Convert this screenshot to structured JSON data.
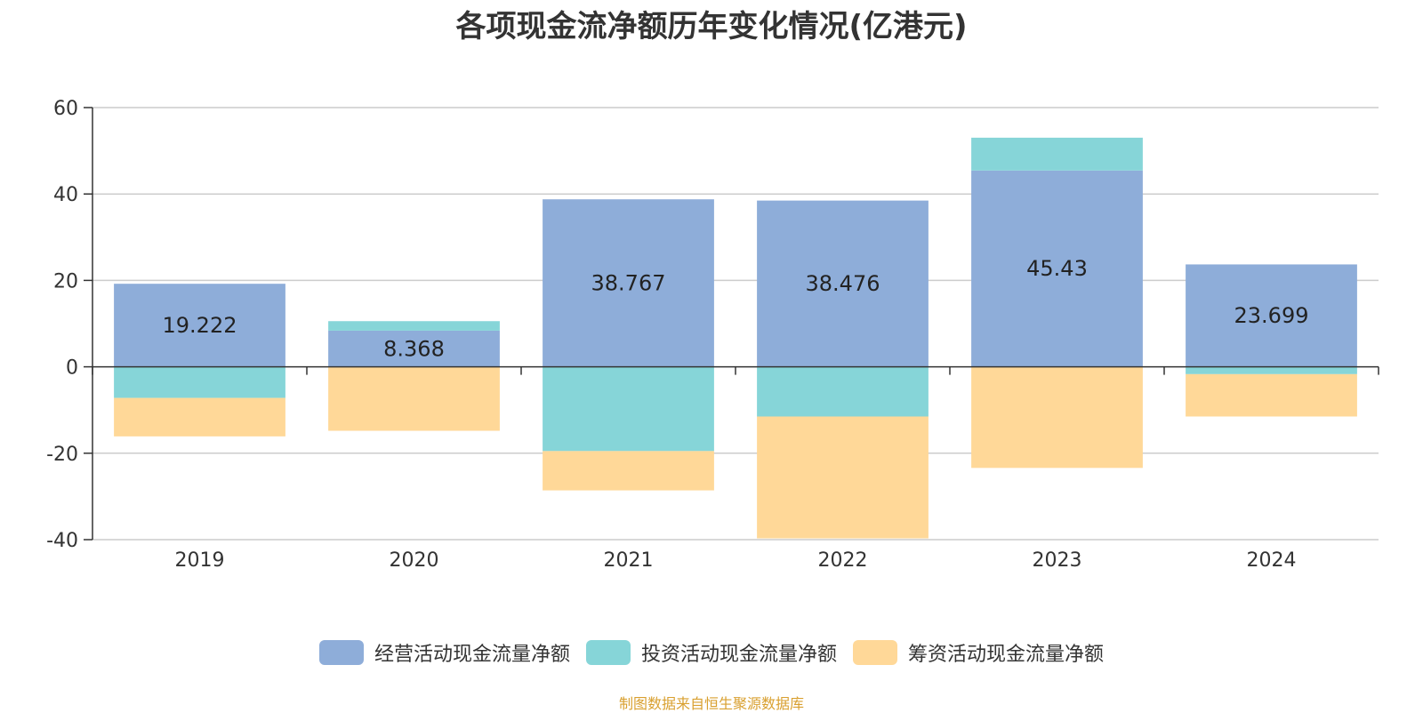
{
  "chart_data": {
    "type": "bar",
    "stacked": true,
    "title": "各项现金流净额历年变化情况(亿港元)",
    "categories": [
      "2019",
      "2020",
      "2021",
      "2022",
      "2023",
      "2024"
    ],
    "series": [
      {
        "name": "经营活动现金流量净额",
        "color": "#8eadd9",
        "values": [
          19.222,
          8.368,
          38.767,
          38.476,
          45.43,
          23.699
        ],
        "show_labels": true
      },
      {
        "name": "投资活动现金流量净额",
        "color": "#86d5d8",
        "values": [
          -7.2,
          2.2,
          -19.5,
          -11.5,
          7.6,
          -1.7
        ]
      },
      {
        "name": "筹资活动现金流量净额",
        "color": "#ffd898",
        "values": [
          -8.9,
          -14.8,
          -9.1,
          -28.2,
          -23.4,
          -9.8
        ]
      }
    ],
    "ylim": [
      -40,
      60
    ],
    "yticks": [
      60,
      40,
      20,
      0,
      -20,
      -40
    ],
    "grid": true,
    "legend_position": "bottom"
  },
  "source_note": "制图数据来自恒生聚源数据库"
}
